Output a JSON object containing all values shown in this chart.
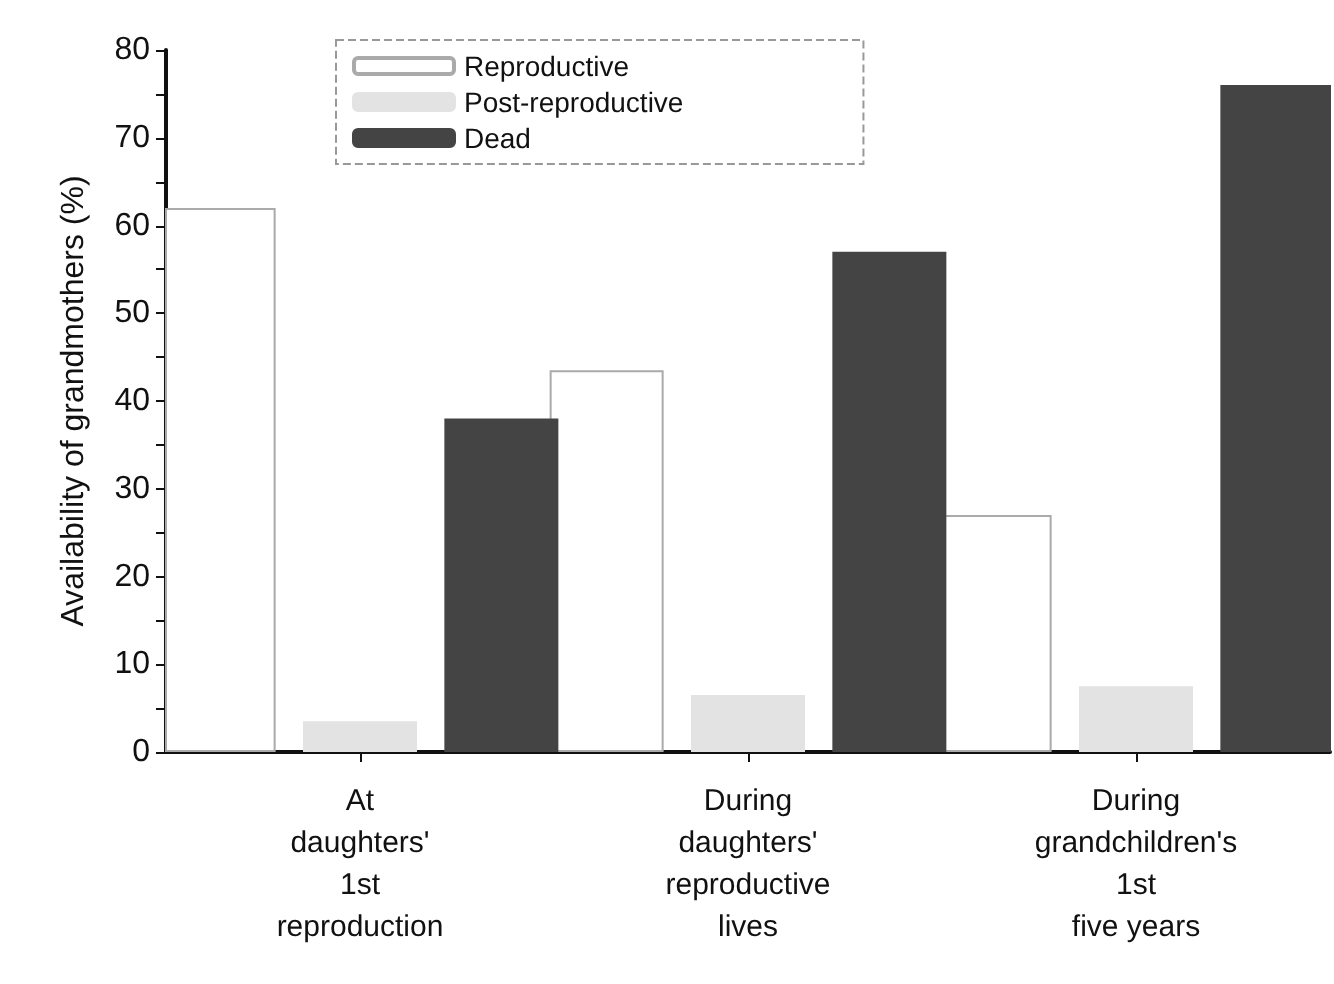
{
  "chart_data": {
    "type": "bar",
    "ylabel": "Availability of grandmothers (%)",
    "categories": [
      "At\ndaughters'\n1st\nreproduction",
      "During\ndaughters'\nreproductive\nlives",
      "During\ngrandchildren's\n1st\nfive years"
    ],
    "series": [
      {
        "name": "Reproductive",
        "color": "#ffffff",
        "values": [
          62,
          43.5,
          27
        ]
      },
      {
        "name": "Post-reproductive",
        "color": "#e3e3e3",
        "values": [
          3.5,
          6.5,
          7.5
        ]
      },
      {
        "name": "Dead",
        "color": "#444444",
        "values": [
          38,
          57,
          76
        ]
      }
    ],
    "ylim": [
      0,
      80
    ],
    "yticks": [
      0,
      {
        "value": 5,
        "label": null
      },
      10,
      {
        "value": 15,
        "label": null
      },
      20,
      {
        "value": 25,
        "label": null
      },
      30,
      {
        "value": 35,
        "label": null
      },
      40,
      {
        "value": 45,
        "label": null
      },
      50,
      {
        "value": 55,
        "label": null
      },
      60,
      {
        "value": 65,
        "label": null
      },
      70,
      {
        "value": 75,
        "label": null
      },
      80
    ],
    "grid": false,
    "legend": "top"
  }
}
